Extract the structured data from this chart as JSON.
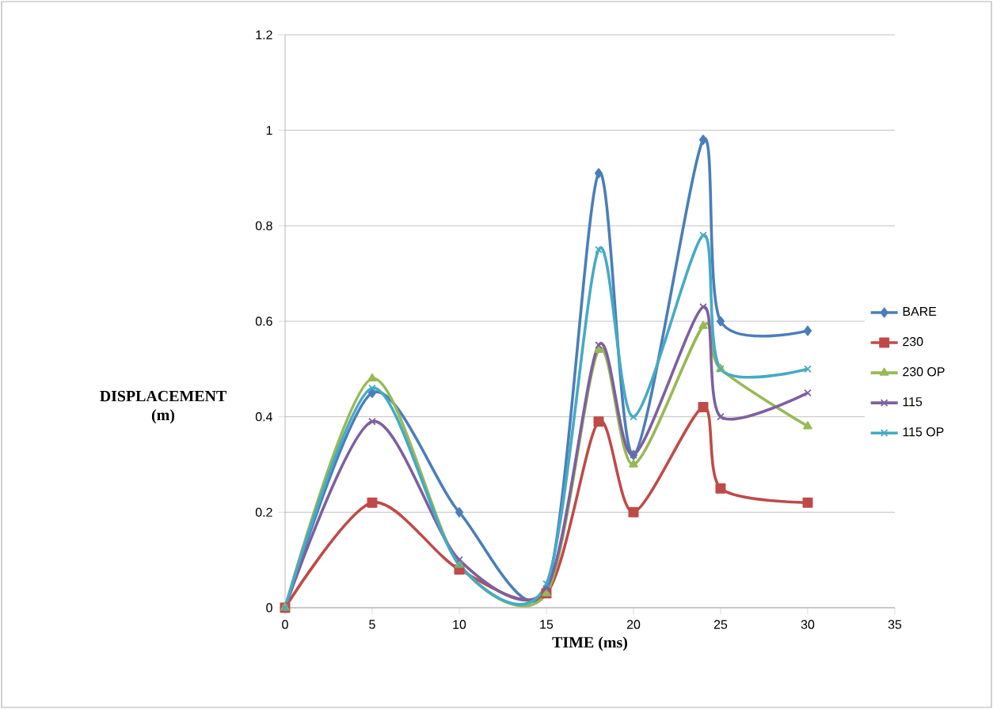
{
  "chart_data": {
    "type": "line",
    "xlabel": "TIME (ms)",
    "ylabel": "DISPLACEMENT (m)",
    "x": [
      0,
      5,
      10,
      15,
      18,
      20,
      24,
      25,
      30
    ],
    "xlim": [
      0,
      35
    ],
    "xticks": [
      0,
      5,
      10,
      15,
      20,
      25,
      30,
      35
    ],
    "ylim": [
      0,
      1.2
    ],
    "yticks": [
      0,
      0.2,
      0.4,
      0.6,
      0.8,
      1,
      1.2
    ],
    "grid": "y",
    "legend": "right",
    "line_style": "solid",
    "series": [
      {
        "name": "BARE",
        "color": "#4a7ebb",
        "marker": "diamond",
        "values": [
          0,
          0.45,
          0.2,
          0.04,
          0.91,
          0.32,
          0.98,
          0.6,
          0.58
        ]
      },
      {
        "name": "230",
        "color": "#be4b48",
        "marker": "square",
        "values": [
          0,
          0.22,
          0.08,
          0.03,
          0.39,
          0.2,
          0.42,
          0.25,
          0.22
        ]
      },
      {
        "name": "230 OP",
        "color": "#98b954",
        "marker": "triangle",
        "values": [
          0,
          0.48,
          0.09,
          0.03,
          0.54,
          0.3,
          0.59,
          0.5,
          0.38
        ]
      },
      {
        "name": "115",
        "color": "#7d60a0",
        "marker": "cross",
        "values": [
          0,
          0.39,
          0.1,
          0.04,
          0.55,
          0.32,
          0.63,
          0.4,
          0.45
        ]
      },
      {
        "name": "115 OP",
        "color": "#46aac5",
        "marker": "cross",
        "values": [
          0,
          0.46,
          0.09,
          0.05,
          0.75,
          0.4,
          0.78,
          0.5,
          0.5
        ]
      }
    ]
  }
}
